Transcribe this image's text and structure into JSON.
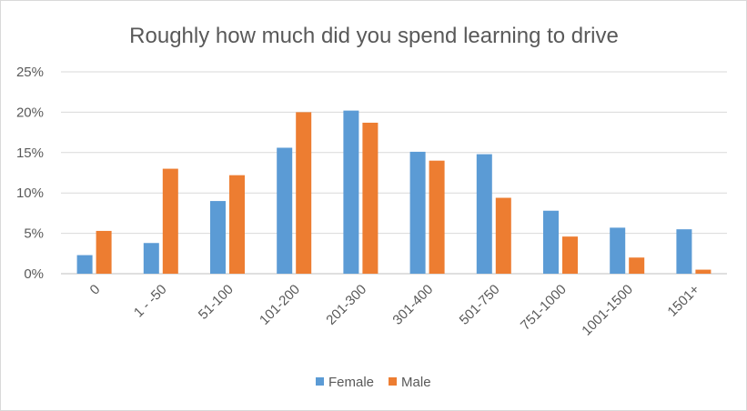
{
  "chart_data": {
    "type": "bar",
    "title": "Roughly how much did you spend learning to drive",
    "categories": [
      "0",
      "1 - -50",
      "51-100",
      "101-200",
      "201-300",
      "301-400",
      "501-750",
      "751-1000",
      "1001-1500",
      "1501+"
    ],
    "series": [
      {
        "name": "Female",
        "color": "#5B9BD5",
        "values": [
          2.3,
          3.8,
          9.0,
          15.6,
          20.2,
          15.1,
          14.8,
          7.8,
          5.7,
          5.5
        ]
      },
      {
        "name": "Male",
        "color": "#ED7D31",
        "values": [
          5.3,
          13.0,
          12.2,
          20.0,
          18.7,
          14.0,
          9.4,
          4.6,
          2.0,
          0.5
        ]
      }
    ],
    "y_ticks": [
      "0%",
      "5%",
      "10%",
      "15%",
      "20%",
      "25%"
    ],
    "ylim": [
      0,
      25
    ],
    "y_unit": "%",
    "grid": true,
    "legend_position": "bottom"
  }
}
